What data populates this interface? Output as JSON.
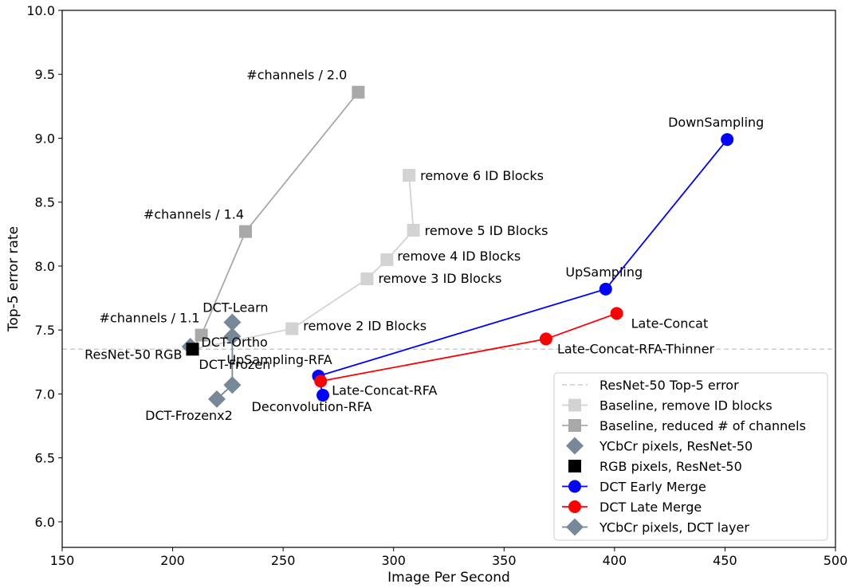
{
  "chart_data": {
    "type": "scatter",
    "title": "",
    "xlabel": "Image Per Second",
    "ylabel": "Top-5 error rate",
    "xlim": [
      150,
      500
    ],
    "ylim": [
      5.8,
      10.0
    ],
    "xticks": [
      "150",
      "200",
      "250",
      "300",
      "350",
      "400",
      "450",
      "500"
    ],
    "yticks": [
      "6.0",
      "6.5",
      "7.0",
      "7.5",
      "8.0",
      "8.5",
      "9.0",
      "9.5",
      "10.0"
    ],
    "grid": false,
    "legend_position": "lower-right",
    "reference_line": {
      "name": "ResNet-50 Top-5 error",
      "y": 7.35,
      "color": "#cccccc",
      "style": "dashed"
    },
    "series": [
      {
        "name": "Baseline, remove ID blocks",
        "marker": "square",
        "color": "#d3d3d3",
        "connected": true,
        "x": [
          209,
          254,
          288,
          297,
          309,
          307
        ],
        "y": [
          7.35,
          7.51,
          7.9,
          8.05,
          8.28,
          8.71
        ]
      },
      {
        "name": "Baseline, reduced # of channels",
        "marker": "square",
        "color": "#a9a9a9",
        "connected": true,
        "x": [
          209,
          213,
          233,
          284
        ],
        "y": [
          7.35,
          7.46,
          8.27,
          9.36
        ]
      },
      {
        "name": "YCbCr pixels, ResNet-50",
        "marker": "diamond",
        "color": "#778899",
        "connected": false,
        "x": [
          208
        ],
        "y": [
          7.37
        ]
      },
      {
        "name": "RGB pixels, ResNet-50",
        "marker": "square",
        "color": "#000000",
        "connected": false,
        "x": [
          209
        ],
        "y": [
          7.35
        ]
      },
      {
        "name": "DCT Early Merge",
        "marker": "circle",
        "color": "#0000ff",
        "connected": true,
        "x": [
          268,
          266,
          396,
          451
        ],
        "y": [
          6.99,
          7.14,
          7.82,
          8.99
        ]
      },
      {
        "name": "DCT Late Merge",
        "marker": "circle",
        "color": "#ff0000",
        "connected": true,
        "x": [
          267,
          369,
          401
        ],
        "y": [
          7.1,
          7.43,
          7.63
        ]
      },
      {
        "name": "YCbCr pixels, DCT layer",
        "marker": "diamond",
        "color": "#778899",
        "connected": true,
        "x": [
          220,
          227,
          227,
          227
        ],
        "y": [
          6.96,
          7.07,
          7.45,
          7.56
        ]
      }
    ],
    "annotations": [
      {
        "text": "#channels / 2.0",
        "x": 284,
        "y": 9.36,
        "anchor": "end",
        "dx": -14,
        "dy": -16
      },
      {
        "text": "#channels / 1.4",
        "x": 233,
        "y": 8.27,
        "anchor": "end",
        "dx": -2,
        "dy": -16
      },
      {
        "text": "#channels / 1.1",
        "x": 213,
        "y": 7.46,
        "anchor": "end",
        "dx": -2,
        "dy": -16
      },
      {
        "text": "remove 6 ID Blocks",
        "x": 307,
        "y": 8.71,
        "anchor": "start",
        "dx": 14,
        "dy": 6
      },
      {
        "text": "remove 5 ID Blocks",
        "x": 309,
        "y": 8.28,
        "anchor": "start",
        "dx": 14,
        "dy": 6
      },
      {
        "text": "remove 4 ID Blocks",
        "x": 297,
        "y": 8.05,
        "anchor": "start",
        "dx": 13,
        "dy": 1
      },
      {
        "text": "remove 3 ID Blocks",
        "x": 288,
        "y": 7.9,
        "anchor": "start",
        "dx": 14,
        "dy": 5
      },
      {
        "text": "remove 2 ID Blocks",
        "x": 254,
        "y": 7.51,
        "anchor": "start",
        "dx": 14,
        "dy": 2
      },
      {
        "text": "ResNet-50 RGB",
        "x": 209,
        "y": 7.35,
        "anchor": "end",
        "dx": -13,
        "dy": 12
      },
      {
        "text": "DCT-Learn",
        "x": 227,
        "y": 7.56,
        "anchor": "middle",
        "dx": 4,
        "dy": -13
      },
      {
        "text": "DCT-Ortho",
        "x": 227,
        "y": 7.45,
        "anchor": "start",
        "dx": -39,
        "dy": 13
      },
      {
        "text": "DCT-Frozen",
        "x": 227,
        "y": 7.07,
        "anchor": "middle",
        "dx": 3,
        "dy": -20
      },
      {
        "text": "DCT-Frozenx2",
        "x": 220,
        "y": 6.96,
        "anchor": "middle",
        "dx": -35,
        "dy": 26
      },
      {
        "text": "DownSampling",
        "x": 451,
        "y": 8.99,
        "anchor": "middle",
        "dx": -14,
        "dy": -16
      },
      {
        "text": "UpSampling",
        "x": 396,
        "y": 7.82,
        "anchor": "middle",
        "dx": -2,
        "dy": -16
      },
      {
        "text": "UpSampling-RFA",
        "x": 266,
        "y": 7.14,
        "anchor": "middle",
        "dx": -49,
        "dy": -15
      },
      {
        "text": "Late-Concat",
        "x": 401,
        "y": 7.63,
        "anchor": "start",
        "dx": 18,
        "dy": 18
      },
      {
        "text": "Late-Concat-RFA-Thinner",
        "x": 369,
        "y": 7.43,
        "anchor": "start",
        "dx": 14,
        "dy": 18
      },
      {
        "text": "Late-Concat-RFA",
        "x": 267,
        "y": 7.1,
        "anchor": "start",
        "dx": 14,
        "dy": 17
      },
      {
        "text": "Deconvolution-RFA",
        "x": 268,
        "y": 6.99,
        "anchor": "middle",
        "dx": -14,
        "dy": 20
      }
    ]
  }
}
